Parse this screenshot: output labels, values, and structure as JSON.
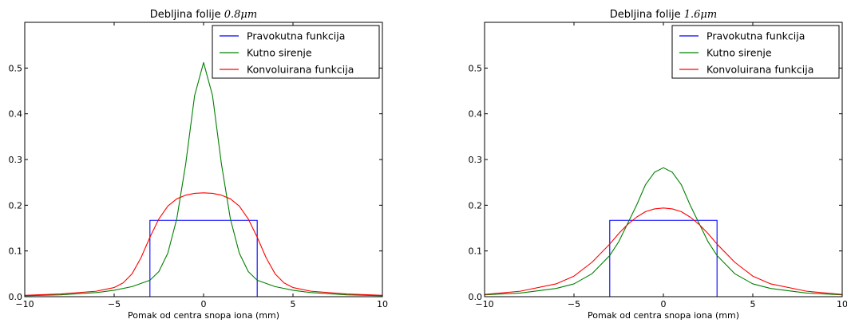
{
  "chart_data": [
    {
      "type": "line",
      "title": "Debljina folije",
      "title_math": "0.8μm",
      "xlabel": "Pomak od centra snopa iona (mm)",
      "ylabel": "",
      "xlim": [
        -10,
        10
      ],
      "ylim": [
        0,
        0.6
      ],
      "x_ticks": [
        -10,
        -5,
        0,
        5,
        10
      ],
      "x_tick_labels": [
        "−10",
        "−5",
        "0",
        "5",
        "10"
      ],
      "y_ticks": [
        0.0,
        0.1,
        0.2,
        0.3,
        0.4,
        0.5
      ],
      "y_tick_labels": [
        "0.0",
        "0.1",
        "0.2",
        "0.3",
        "0.4",
        "0.5"
      ],
      "legend_position": "top-right",
      "grid": false,
      "series": [
        {
          "name": "Pravokutna funkcija",
          "color": "#0000ff",
          "points": [
            [
              -10,
              0
            ],
            [
              -3,
              0
            ],
            [
              -3,
              0.167
            ],
            [
              3,
              0.167
            ],
            [
              3,
              0
            ],
            [
              10,
              0
            ]
          ]
        },
        {
          "name": "Kutno sirenje",
          "color": "#008000",
          "points": [
            [
              -10,
              0.002
            ],
            [
              -8,
              0.004
            ],
            [
              -6,
              0.009
            ],
            [
              -5,
              0.014
            ],
            [
              -4,
              0.022
            ],
            [
              -3,
              0.036
            ],
            [
              -2.5,
              0.055
            ],
            [
              -2,
              0.095
            ],
            [
              -1.5,
              0.17
            ],
            [
              -1,
              0.29
            ],
            [
              -0.5,
              0.44
            ],
            [
              0,
              0.512
            ],
            [
              0.5,
              0.44
            ],
            [
              1,
              0.29
            ],
            [
              1.5,
              0.17
            ],
            [
              2,
              0.095
            ],
            [
              2.5,
              0.055
            ],
            [
              3,
              0.036
            ],
            [
              4,
              0.022
            ],
            [
              5,
              0.014
            ],
            [
              6,
              0.009
            ],
            [
              8,
              0.004
            ],
            [
              10,
              0.002
            ]
          ]
        },
        {
          "name": "Konvoluirana funkcija",
          "color": "#ff0000",
          "points": [
            [
              -10,
              0.003
            ],
            [
              -8,
              0.006
            ],
            [
              -6,
              0.012
            ],
            [
              -5,
              0.02
            ],
            [
              -4.5,
              0.03
            ],
            [
              -4,
              0.05
            ],
            [
              -3.5,
              0.085
            ],
            [
              -3,
              0.13
            ],
            [
              -2.5,
              0.17
            ],
            [
              -2,
              0.198
            ],
            [
              -1.5,
              0.214
            ],
            [
              -1,
              0.222
            ],
            [
              -0.5,
              0.226
            ],
            [
              0,
              0.227
            ],
            [
              0.5,
              0.226
            ],
            [
              1,
              0.222
            ],
            [
              1.5,
              0.214
            ],
            [
              2,
              0.198
            ],
            [
              2.5,
              0.17
            ],
            [
              3,
              0.13
            ],
            [
              3.5,
              0.085
            ],
            [
              4,
              0.05
            ],
            [
              4.5,
              0.03
            ],
            [
              5,
              0.02
            ],
            [
              6,
              0.012
            ],
            [
              8,
              0.006
            ],
            [
              10,
              0.003
            ]
          ]
        }
      ]
    },
    {
      "type": "line",
      "title": "Debljina folije",
      "title_math": "1.6μm",
      "xlabel": "Pomak od centra snopa iona (mm)",
      "ylabel": "",
      "xlim": [
        -10,
        10
      ],
      "ylim": [
        0,
        0.6
      ],
      "x_ticks": [
        -10,
        -5,
        0,
        5,
        10
      ],
      "x_tick_labels": [
        "−10",
        "−5",
        "0",
        "5",
        "10"
      ],
      "y_ticks": [
        0.0,
        0.1,
        0.2,
        0.3,
        0.4,
        0.5
      ],
      "y_tick_labels": [
        "0.0",
        "0.1",
        "0.2",
        "0.3",
        "0.4",
        "0.5"
      ],
      "legend_position": "top-right",
      "grid": false,
      "series": [
        {
          "name": "Pravokutna funkcija",
          "color": "#0000ff",
          "points": [
            [
              -10,
              0
            ],
            [
              -3,
              0
            ],
            [
              -3,
              0.167
            ],
            [
              3,
              0.167
            ],
            [
              3,
              0
            ],
            [
              10,
              0
            ]
          ]
        },
        {
          "name": "Kutno sirenje",
          "color": "#008000",
          "points": [
            [
              -10,
              0.004
            ],
            [
              -8,
              0.008
            ],
            [
              -6,
              0.018
            ],
            [
              -5,
              0.028
            ],
            [
              -4,
              0.05
            ],
            [
              -3,
              0.09
            ],
            [
              -2.5,
              0.12
            ],
            [
              -2,
              0.16
            ],
            [
              -1.5,
              0.2
            ],
            [
              -1,
              0.245
            ],
            [
              -0.5,
              0.272
            ],
            [
              0,
              0.282
            ],
            [
              0.5,
              0.272
            ],
            [
              1,
              0.245
            ],
            [
              1.5,
              0.2
            ],
            [
              2,
              0.16
            ],
            [
              2.5,
              0.12
            ],
            [
              3,
              0.09
            ],
            [
              4,
              0.05
            ],
            [
              5,
              0.028
            ],
            [
              6,
              0.018
            ],
            [
              8,
              0.008
            ],
            [
              10,
              0.004
            ]
          ]
        },
        {
          "name": "Konvoluirana funkcija",
          "color": "#ff0000",
          "points": [
            [
              -10,
              0.005
            ],
            [
              -8,
              0.012
            ],
            [
              -6,
              0.028
            ],
            [
              -5,
              0.045
            ],
            [
              -4,
              0.075
            ],
            [
              -3,
              0.115
            ],
            [
              -2.5,
              0.138
            ],
            [
              -2,
              0.158
            ],
            [
              -1.5,
              0.174
            ],
            [
              -1,
              0.186
            ],
            [
              -0.5,
              0.192
            ],
            [
              0,
              0.194
            ],
            [
              0.5,
              0.192
            ],
            [
              1,
              0.186
            ],
            [
              1.5,
              0.174
            ],
            [
              2,
              0.158
            ],
            [
              2.5,
              0.138
            ],
            [
              3,
              0.115
            ],
            [
              4,
              0.075
            ],
            [
              5,
              0.045
            ],
            [
              6,
              0.028
            ],
            [
              8,
              0.012
            ],
            [
              10,
              0.005
            ]
          ]
        }
      ]
    }
  ]
}
